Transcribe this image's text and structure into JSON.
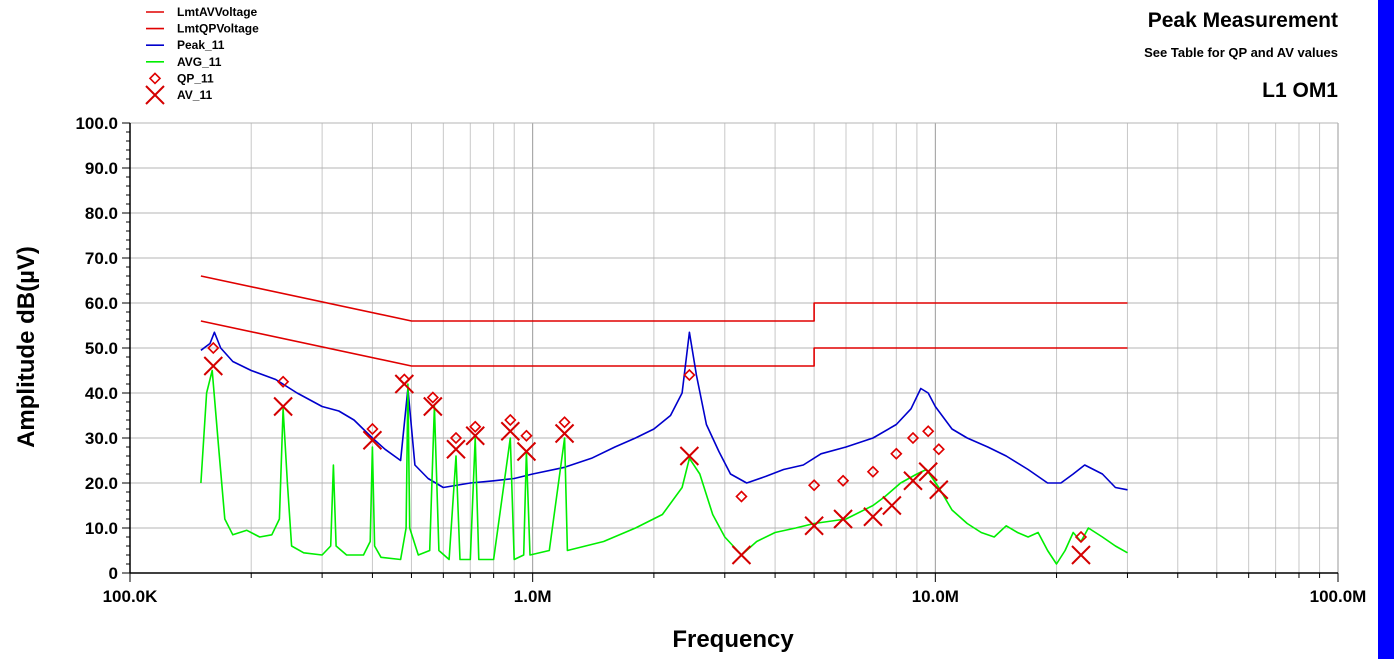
{
  "chart_data": {
    "type": "line",
    "title": "Peak Measurement",
    "subtitle": "See Table for QP and AV  values",
    "title2": "L1 OM1",
    "xlabel": "Frequency",
    "ylabel": "Amplitude dB(µV)",
    "xscale": "log",
    "xlim": [
      100000,
      100000000
    ],
    "ylim": [
      0,
      100
    ],
    "grid": true,
    "legend_position": "top-left",
    "x_ticks": [
      {
        "value": 100000,
        "label": "100.0K"
      },
      {
        "value": 1000000,
        "label": "1.0M"
      },
      {
        "value": 10000000,
        "label": "10.0M"
      },
      {
        "value": 100000000,
        "label": "100.0M"
      }
    ],
    "y_ticks": [
      {
        "value": 0,
        "label": "0"
      },
      {
        "value": 10,
        "label": "10.0"
      },
      {
        "value": 20,
        "label": "20.0"
      },
      {
        "value": 30,
        "label": "30.0"
      },
      {
        "value": 40,
        "label": "40.0"
      },
      {
        "value": 50,
        "label": "50.0"
      },
      {
        "value": 60,
        "label": "60.0"
      },
      {
        "value": 70,
        "label": "70.0"
      },
      {
        "value": 80,
        "label": "80.0"
      },
      {
        "value": 90,
        "label": "90.0"
      },
      {
        "value": 100,
        "label": "100.0"
      }
    ],
    "series": [
      {
        "name": "LmtAVVoltage",
        "kind": "line",
        "color": "#e00000",
        "points": [
          [
            150000,
            56
          ],
          [
            500000,
            46
          ],
          [
            5000000,
            46
          ],
          [
            5000000,
            50
          ],
          [
            30000000,
            50
          ]
        ]
      },
      {
        "name": "LmtQPVoltage",
        "kind": "line",
        "color": "#e00000",
        "points": [
          [
            150000,
            66
          ],
          [
            500000,
            56
          ],
          [
            5000000,
            56
          ],
          [
            5000000,
            60
          ],
          [
            30000000,
            60
          ]
        ]
      },
      {
        "name": "Peak_11",
        "kind": "line",
        "color": "#0000cc",
        "points": [
          [
            150000,
            49.5
          ],
          [
            158000,
            51
          ],
          [
            162000,
            53.5
          ],
          [
            168000,
            50
          ],
          [
            180000,
            47
          ],
          [
            200000,
            45
          ],
          [
            230000,
            43
          ],
          [
            260000,
            40
          ],
          [
            300000,
            37
          ],
          [
            330000,
            36
          ],
          [
            360000,
            34
          ],
          [
            400000,
            30
          ],
          [
            430000,
            27.5
          ],
          [
            470000,
            25
          ],
          [
            490000,
            41
          ],
          [
            510000,
            24
          ],
          [
            550000,
            21
          ],
          [
            600000,
            19
          ],
          [
            700000,
            20
          ],
          [
            800000,
            20.5
          ],
          [
            900000,
            21
          ],
          [
            1000000,
            22
          ],
          [
            1200000,
            23.5
          ],
          [
            1400000,
            25.5
          ],
          [
            1600000,
            28
          ],
          [
            1800000,
            30
          ],
          [
            2000000,
            32
          ],
          [
            2200000,
            35
          ],
          [
            2350000,
            40
          ],
          [
            2450000,
            53.5
          ],
          [
            2550000,
            44
          ],
          [
            2700000,
            33
          ],
          [
            2900000,
            27
          ],
          [
            3100000,
            22
          ],
          [
            3400000,
            20
          ],
          [
            3800000,
            21.5
          ],
          [
            4200000,
            23
          ],
          [
            4700000,
            24
          ],
          [
            5200000,
            26.5
          ],
          [
            6000000,
            28
          ],
          [
            7000000,
            30
          ],
          [
            8000000,
            33
          ],
          [
            8700000,
            36.5
          ],
          [
            9200000,
            41
          ],
          [
            9600000,
            40
          ],
          [
            10000000,
            37
          ],
          [
            11000000,
            32
          ],
          [
            12000000,
            30
          ],
          [
            13500000,
            28
          ],
          [
            15000000,
            26
          ],
          [
            17000000,
            23
          ],
          [
            19000000,
            20
          ],
          [
            20500000,
            20
          ],
          [
            22000000,
            22
          ],
          [
            23500000,
            24
          ],
          [
            26000000,
            22
          ],
          [
            28000000,
            19
          ],
          [
            30000000,
            18.5
          ]
        ]
      },
      {
        "name": "AVG_11",
        "kind": "line",
        "color": "#00ee00",
        "points": [
          [
            150000,
            20
          ],
          [
            155000,
            40
          ],
          [
            160000,
            45
          ],
          [
            166000,
            28
          ],
          [
            172000,
            12
          ],
          [
            180000,
            8.5
          ],
          [
            195000,
            9.5
          ],
          [
            210000,
            8
          ],
          [
            225000,
            8.5
          ],
          [
            235000,
            12
          ],
          [
            240000,
            36.5
          ],
          [
            246000,
            20
          ],
          [
            252000,
            6
          ],
          [
            270000,
            4.5
          ],
          [
            300000,
            4
          ],
          [
            315000,
            6
          ],
          [
            320000,
            24
          ],
          [
            325000,
            6
          ],
          [
            345000,
            4
          ],
          [
            380000,
            4
          ],
          [
            395000,
            7
          ],
          [
            400000,
            28
          ],
          [
            405000,
            6
          ],
          [
            420000,
            3.5
          ],
          [
            470000,
            3
          ],
          [
            485000,
            10
          ],
          [
            490000,
            42
          ],
          [
            495000,
            10
          ],
          [
            520000,
            4
          ],
          [
            555000,
            5
          ],
          [
            570000,
            37
          ],
          [
            585000,
            5
          ],
          [
            620000,
            3
          ],
          [
            645000,
            26
          ],
          [
            660000,
            3
          ],
          [
            700000,
            3
          ],
          [
            720000,
            30
          ],
          [
            735000,
            3
          ],
          [
            800000,
            3
          ],
          [
            880000,
            30
          ],
          [
            900000,
            3
          ],
          [
            950000,
            4
          ],
          [
            965000,
            27
          ],
          [
            985000,
            4
          ],
          [
            1100000,
            5
          ],
          [
            1200000,
            30
          ],
          [
            1220000,
            5
          ],
          [
            1500000,
            7
          ],
          [
            1800000,
            10
          ],
          [
            2100000,
            13
          ],
          [
            2350000,
            19
          ],
          [
            2450000,
            25.5
          ],
          [
            2600000,
            22
          ],
          [
            2800000,
            13
          ],
          [
            3000000,
            8
          ],
          [
            3300000,
            4
          ],
          [
            3600000,
            7
          ],
          [
            4000000,
            9
          ],
          [
            4500000,
            10
          ],
          [
            5000000,
            11
          ],
          [
            6000000,
            12
          ],
          [
            7000000,
            15
          ],
          [
            7500000,
            17
          ],
          [
            8200000,
            20
          ],
          [
            9000000,
            22
          ],
          [
            9500000,
            23
          ],
          [
            10200000,
            19
          ],
          [
            11000000,
            14
          ],
          [
            12000000,
            11
          ],
          [
            13000000,
            9
          ],
          [
            14000000,
            8
          ],
          [
            15000000,
            10.5
          ],
          [
            16000000,
            9
          ],
          [
            17000000,
            8
          ],
          [
            18000000,
            9
          ],
          [
            19000000,
            5
          ],
          [
            20000000,
            2
          ],
          [
            21000000,
            5
          ],
          [
            22000000,
            9
          ],
          [
            23000000,
            7
          ],
          [
            24000000,
            10
          ],
          [
            26000000,
            8
          ],
          [
            28000000,
            6
          ],
          [
            30000000,
            4.5
          ]
        ]
      },
      {
        "name": "QP_11",
        "kind": "scatter",
        "marker": "diamond",
        "color": "#e00000",
        "points": [
          [
            161000,
            50
          ],
          [
            240000,
            42.5
          ],
          [
            400000,
            32
          ],
          [
            480000,
            43
          ],
          [
            565000,
            39
          ],
          [
            645000,
            30
          ],
          [
            720000,
            32.5
          ],
          [
            880000,
            34
          ],
          [
            965000,
            30.5
          ],
          [
            1200000,
            33.5
          ],
          [
            2450000,
            44
          ],
          [
            3300000,
            17
          ],
          [
            5000000,
            19.5
          ],
          [
            5900000,
            20.5
          ],
          [
            7000000,
            22.5
          ],
          [
            8000000,
            26.5
          ],
          [
            8800000,
            30
          ],
          [
            9600000,
            31.5
          ],
          [
            10200000,
            27.5
          ],
          [
            23000000,
            8
          ]
        ]
      },
      {
        "name": "AV_11",
        "kind": "scatter",
        "marker": "x",
        "color": "#d40000",
        "points": [
          [
            161000,
            46
          ],
          [
            240000,
            37
          ],
          [
            400000,
            29.5
          ],
          [
            480000,
            42
          ],
          [
            565000,
            37
          ],
          [
            645000,
            27.5
          ],
          [
            720000,
            30.5
          ],
          [
            880000,
            31.5
          ],
          [
            965000,
            27
          ],
          [
            1200000,
            31
          ],
          [
            2450000,
            26
          ],
          [
            3300000,
            4
          ],
          [
            5000000,
            10.5
          ],
          [
            5900000,
            12
          ],
          [
            7000000,
            12.5
          ],
          [
            7800000,
            15
          ],
          [
            8800000,
            20.5
          ],
          [
            9600000,
            22.5
          ],
          [
            10200000,
            18.5
          ],
          [
            23000000,
            4
          ]
        ]
      }
    ]
  }
}
